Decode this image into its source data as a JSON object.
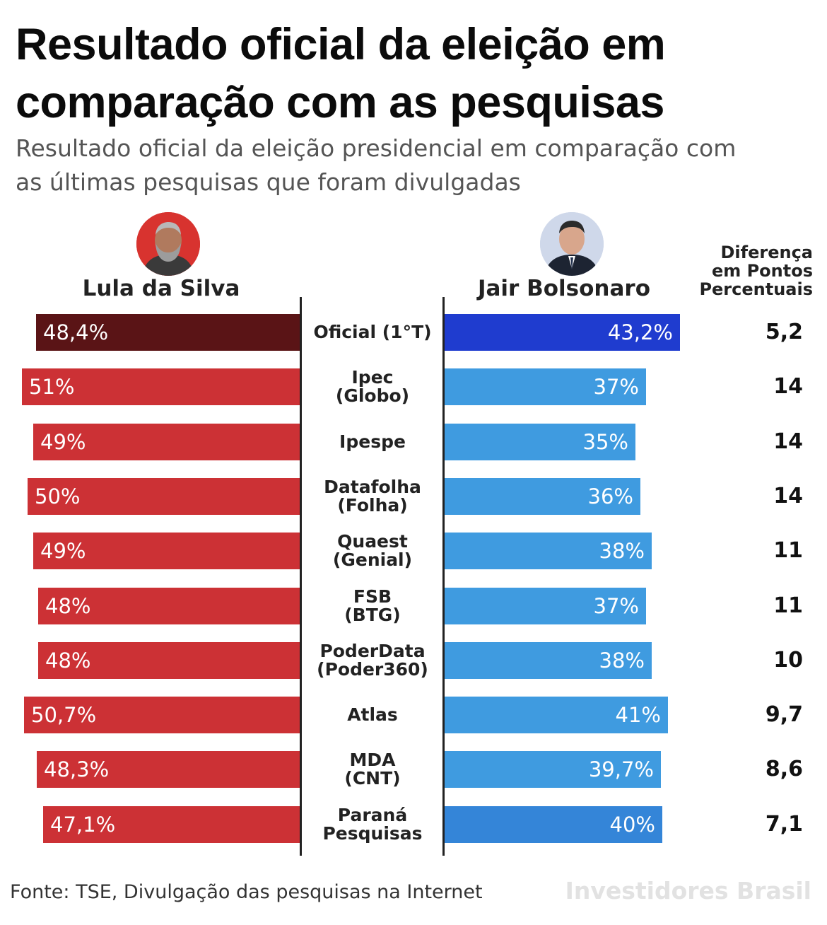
{
  "header": {
    "title_lines": [
      "Resultado oficial da eleição em",
      "comparação com as pesquisas"
    ],
    "subtitle_lines": [
      "Resultado oficial da eleição presidencial em comparação com",
      "as últimas pesquisas que foram divulgadas"
    ]
  },
  "candidates": {
    "left": "Lula da Silva",
    "right": "Jair Bolsonaro"
  },
  "diff_header_lines": [
    "Diferença",
    "em Pontos",
    "Percentuais"
  ],
  "colors": {
    "official_left": "#5a1416",
    "official_right": "#1f3ccf",
    "poll_left": "#cc3135",
    "poll_right": "#3f9be0",
    "bottom_right": "#3485d8"
  },
  "chart_data": {
    "type": "bar",
    "categories": [
      [
        "Oficial (1°T)"
      ],
      [
        "Ipec",
        "(Globo)"
      ],
      [
        "Ipespe"
      ],
      [
        "Datafolha",
        "(Folha)"
      ],
      [
        "Quaest",
        "(Genial)"
      ],
      [
        "FSB",
        "(BTG)"
      ],
      [
        "PoderData",
        "(Poder360)"
      ],
      [
        "Atlas"
      ],
      [
        "MDA",
        "(CNT)"
      ],
      [
        "Paraná",
        "Pesquisas"
      ]
    ],
    "series": [
      {
        "name": "Lula da Silva",
        "values": [
          48.4,
          51,
          49,
          50,
          49,
          48,
          48,
          50.7,
          48.3,
          47.1
        ],
        "labels": [
          "48,4%",
          "51%",
          "49%",
          "50%",
          "49%",
          "48%",
          "48%",
          "50,7%",
          "48,3%",
          "47,1%"
        ]
      },
      {
        "name": "Jair Bolsonaro",
        "values": [
          43.2,
          37,
          35,
          36,
          38,
          37,
          38,
          41,
          39.7,
          40
        ],
        "labels": [
          "43,2%",
          "37%",
          "35%",
          "36%",
          "38%",
          "37%",
          "38%",
          "41%",
          "39,7%",
          "40%"
        ]
      }
    ],
    "differences": [
      "5,2",
      "14",
      "14",
      "14",
      "11",
      "11",
      "10",
      "9,7",
      "8,6",
      "7,1"
    ]
  },
  "footer": {
    "source": "Fonte: TSE, Divulgação das pesquisas na Internet",
    "brand": "Investidores Brasil"
  }
}
